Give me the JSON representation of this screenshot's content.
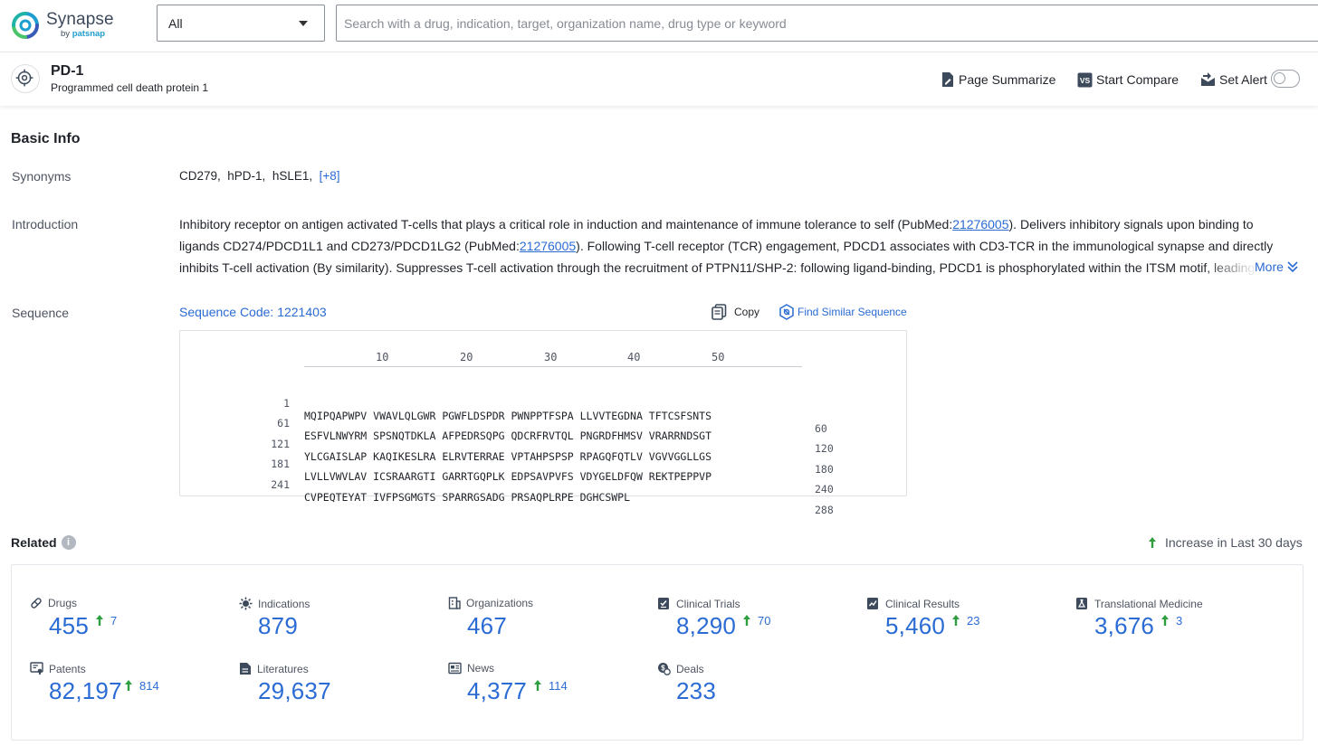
{
  "app": {
    "logo_name": "Synapse",
    "logo_by": "by",
    "logo_brand": "patsnap"
  },
  "search": {
    "scope_value": "All",
    "placeholder": "Search with a drug, indication, target, organization name, drug type or keyword",
    "value": ""
  },
  "entity": {
    "title": "PD-1",
    "subtitle": "Programmed cell death protein 1",
    "actions": {
      "summarize": "Page Summarize",
      "compare": "Start Compare",
      "alert": "Set Alert"
    },
    "alert_enabled": false
  },
  "basic_info": {
    "title": "Basic Info",
    "synonyms_label": "Synonyms",
    "synonyms": [
      "CD279,",
      "hPD-1,",
      "hSLE1,"
    ],
    "synonyms_more": "[+8]",
    "intro_label": "Introduction",
    "intro_lines": [
      {
        "a": "Inhibitory receptor on antigen activated T-cells that plays a critical role in induction and maintenance of immune tolerance to self (PubMed:",
        "link": "21276005",
        "b": "). Delivers inhibitory signals upon binding to"
      },
      {
        "a": "ligands CD274/PDCD1L1 and CD273/PDCD1LG2 (PubMed:",
        "link": "21276005",
        "b": "). Following T-cell receptor (TCR) engagement, PDCD1 associates with CD3-TCR in the immunological synapse and directly"
      },
      {
        "a": "inhibits T-cell activation (By similarity). Suppresses T-cell activation through the recruitment of PTPN11/SHP-2: following ligand-binding, PDCD1 is phosphorylated within the ITSM motif, leading",
        "link": "",
        "b": ""
      }
    ],
    "intro_more": "More",
    "sequence_label": "Sequence",
    "sequence_code": "Sequence Code: 1221403",
    "copy": "Copy",
    "find_similar": "Find Similar Sequence",
    "ruler": [
      "10",
      "20",
      "30",
      "40",
      "50"
    ],
    "sequence_rows": [
      {
        "start": "1",
        "seq": "MQIPQAPWPV VWAVLQLGWR PGWFLDSPDR PWNPPTFSPA LLVVTEGDNA TFTCSFSNTS",
        "end": "60"
      },
      {
        "start": "61",
        "seq": "ESFVLNWYRM SPSNQTDKLA AFPEDRSQPG QDCRFRVTQL PNGRDFHMSV VRARRNDSGT",
        "end": "120"
      },
      {
        "start": "121",
        "seq": "YLCGAISLAP KAQIKESLRA ELRVTERRAE VPTAHPSPSP RPAGQFQTLV VGVVGGLLGS",
        "end": "180"
      },
      {
        "start": "181",
        "seq": "LVLLVWVLAV ICSRAARGTI GARRTGQPLK EDPSAVPVFS VDYGELDFQW REKTPEPPVP",
        "end": "240"
      },
      {
        "start": "241",
        "seq": "CVPEQTEYAT IVFPSGMGTS SPARRGSADG PRSAQPLRPE DGHCSWPL",
        "end": "288"
      }
    ]
  },
  "related": {
    "title": "Related",
    "info_glyph": "i",
    "legend": "Increase in Last 30 days",
    "accent_color": "#2a6bd4",
    "increase_color": "#2e9e3e",
    "stats": [
      {
        "label": "Drugs",
        "value": "455",
        "increase": "7",
        "icon": "pill-icon"
      },
      {
        "label": "Indications",
        "value": "879",
        "increase": "",
        "icon": "virus-icon"
      },
      {
        "label": "Organizations",
        "value": "467",
        "increase": "",
        "icon": "building-icon"
      },
      {
        "label": "Clinical Trials",
        "value": "8,290",
        "increase": "70",
        "icon": "clipboard-icon"
      },
      {
        "label": "Clinical Results",
        "value": "5,460",
        "increase": "23",
        "icon": "chart-doc-icon"
      },
      {
        "label": "Translational Medicine",
        "value": "3,676",
        "increase": "3",
        "icon": "flask-doc-icon"
      },
      {
        "label": "Patents",
        "value": "82,197",
        "increase": "814",
        "icon": "certificate-icon"
      },
      {
        "label": "Literatures",
        "value": "29,637",
        "increase": "",
        "icon": "document-icon"
      },
      {
        "label": "News",
        "value": "4,377",
        "increase": "114",
        "icon": "newspaper-icon"
      },
      {
        "label": "Deals",
        "value": "233",
        "increase": "",
        "icon": "money-icon"
      }
    ]
  }
}
